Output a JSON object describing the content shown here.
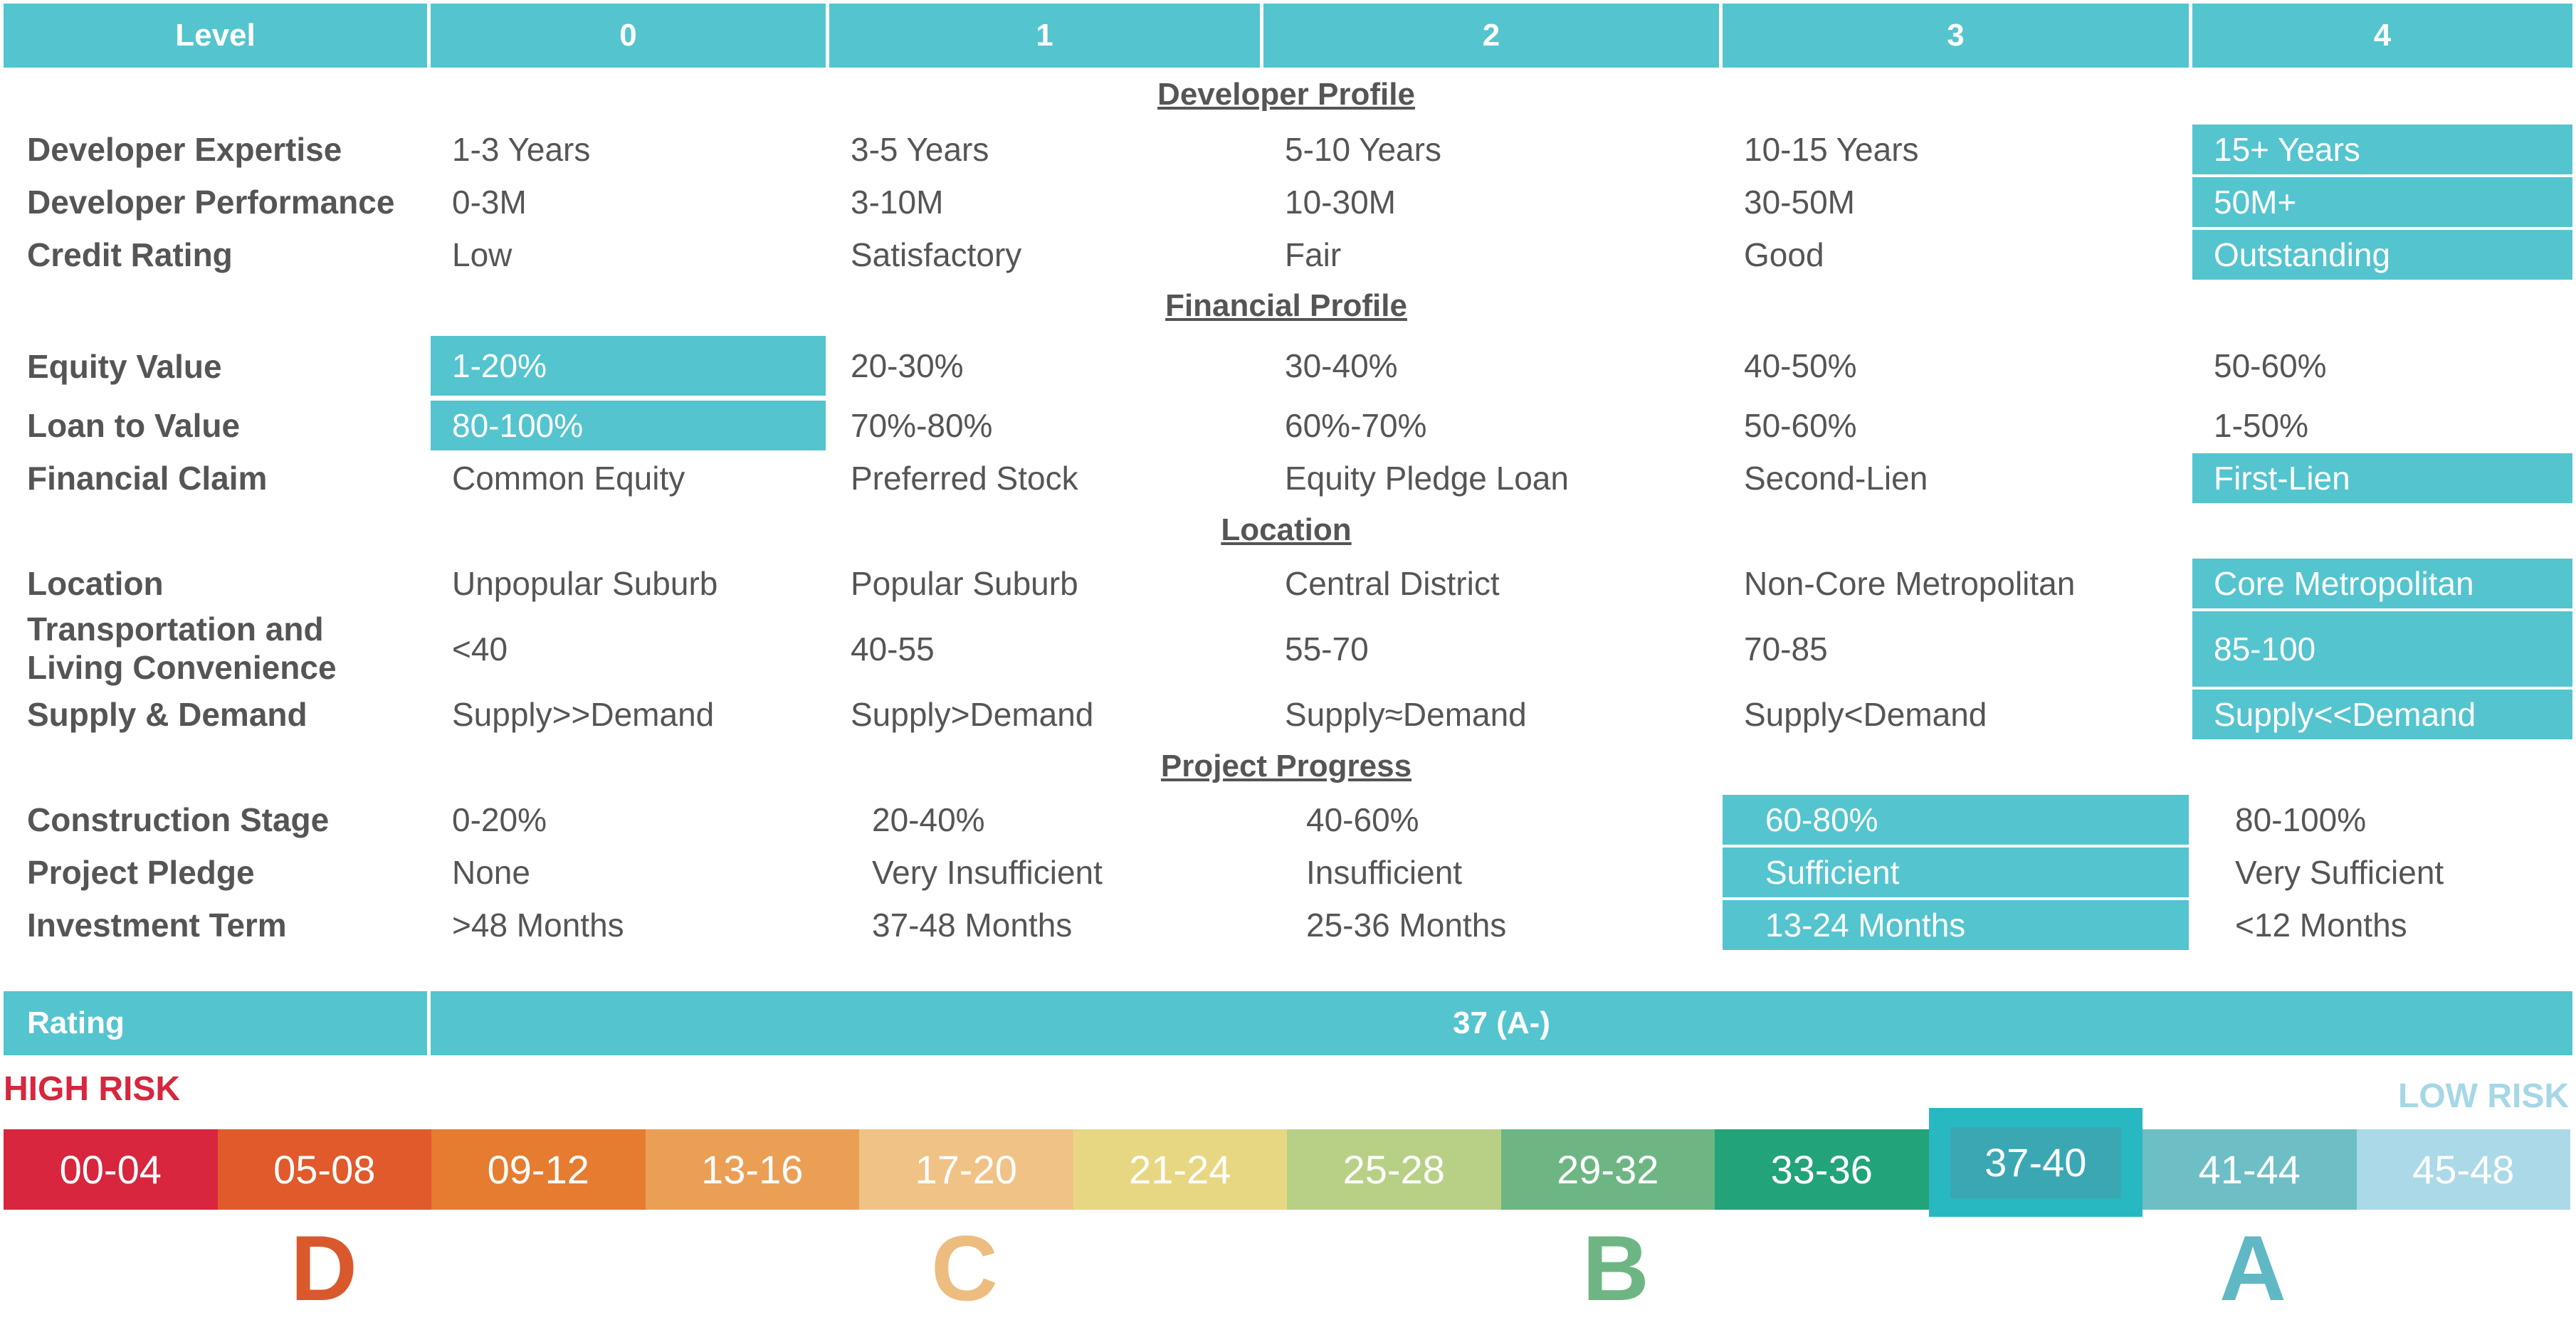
{
  "header": {
    "level_label": "Level",
    "levels": [
      "0",
      "1",
      "2",
      "3",
      "4"
    ]
  },
  "sections": {
    "developer_profile": "Developer Profile",
    "financial_profile": "Financial Profile",
    "location": "Location",
    "project_progress": "Project Progress"
  },
  "rows": [
    {
      "label": "Developer Expertise",
      "values": [
        "1-3 Years",
        "3-5 Years",
        "5-10 Years",
        "10-15 Years",
        "15+ Years"
      ],
      "selected": 4
    },
    {
      "label": "Developer Performance",
      "values": [
        "0-3M",
        "3-10M",
        "10-30M",
        "30-50M",
        "50M+"
      ],
      "selected": 4
    },
    {
      "label": "Credit Rating",
      "values": [
        "Low",
        "Satisfactory",
        "Fair",
        "Good",
        "Outstanding"
      ],
      "selected": 4
    },
    {
      "label": "Equity Value",
      "values": [
        "1-20%",
        "20-30%",
        "30-40%",
        "40-50%",
        "50-60%"
      ],
      "selected": 0
    },
    {
      "label": "Loan to Value",
      "values": [
        "80-100%",
        "70%-80%",
        "60%-70%",
        "50-60%",
        "1-50%"
      ],
      "selected": 0
    },
    {
      "label": "Financial Claim",
      "values": [
        "Common Equity",
        "Preferred Stock",
        "Equity Pledge Loan",
        "Second-Lien",
        "First-Lien"
      ],
      "selected": 4
    },
    {
      "label": "Location",
      "values": [
        "Unpopular Suburb",
        "Popular Suburb",
        "Central District",
        "Non-Core Metropolitan",
        "Core Metropolitan"
      ],
      "selected": 4
    },
    {
      "label_line1": "Transportation and",
      "label_line2": "Living Convenience",
      "values": [
        "<40",
        "40-55",
        "55-70",
        "70-85",
        "85-100"
      ],
      "selected": 4
    },
    {
      "label": "Supply & Demand",
      "values": [
        "Supply>>Demand",
        "Supply>Demand",
        "Supply≈Demand",
        "Supply<Demand",
        "Supply<<Demand"
      ],
      "selected": 4
    },
    {
      "label": "Construction Stage",
      "values": [
        "0-20%",
        "20-40%",
        "40-60%",
        "60-80%",
        "80-100%"
      ],
      "selected": 3
    },
    {
      "label": "Project Pledge",
      "values": [
        "None",
        "Very Insufficient",
        "Insufficient",
        "Sufficient",
        "Very Sufficient"
      ],
      "selected": 3
    },
    {
      "label": "Investment Term",
      "values": [
        ">48 Months",
        "37-48 Months",
        "25-36 Months",
        "13-24 Months",
        "<12 Months"
      ],
      "selected": 3
    }
  ],
  "rating": {
    "label": "Rating",
    "value": "37 (A-)"
  },
  "risk": {
    "high": "HIGH RISK",
    "low": "LOW RISK",
    "high_color": "#d7263d",
    "low_color": "#a6d7e6"
  },
  "scale": [
    {
      "range": "00-04",
      "color": "#d7263d"
    },
    {
      "range": "05-08",
      "color": "#e05a2b"
    },
    {
      "range": "09-12",
      "color": "#e67c30"
    },
    {
      "range": "13-16",
      "color": "#eb9f55"
    },
    {
      "range": "17-20",
      "color": "#f0c285"
    },
    {
      "range": "21-24",
      "color": "#e8d782"
    },
    {
      "range": "25-28",
      "color": "#b8d086"
    },
    {
      "range": "29-32",
      "color": "#6db683"
    },
    {
      "range": "33-36",
      "color": "#22a37a"
    },
    {
      "range": "37-40",
      "color": "#28b8c2",
      "selected": true
    },
    {
      "range": "41-44",
      "color": "#6dbfc5"
    },
    {
      "range": "45-48",
      "color": "#abd9e8"
    }
  ],
  "grades": [
    {
      "letter": "D",
      "color": "#d9582c"
    },
    {
      "letter": "C",
      "color": "#edbd80"
    },
    {
      "letter": "B",
      "color": "#6db683"
    },
    {
      "letter": "A",
      "color": "#5fb8c4"
    }
  ]
}
